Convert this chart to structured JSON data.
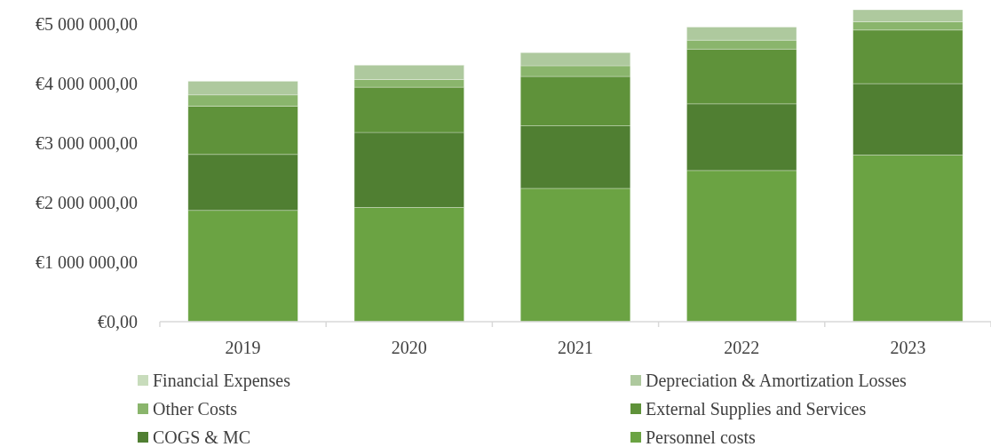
{
  "chart_data": {
    "type": "bar",
    "stacked": true,
    "categories": [
      "2019",
      "2020",
      "2021",
      "2022",
      "2023"
    ],
    "series": [
      {
        "name": "Personnel costs",
        "color": "#6ba343",
        "values": [
          1870000,
          1920000,
          2240000,
          2540000,
          2800000
        ]
      },
      {
        "name": "COGS & MC",
        "color": "#507f32",
        "values": [
          940000,
          1260000,
          1050000,
          1120000,
          1200000
        ]
      },
      {
        "name": "External Supplies and Services",
        "color": "#5f923a",
        "values": [
          810000,
          760000,
          830000,
          920000,
          900000
        ]
      },
      {
        "name": "Other Costs",
        "color": "#8ab56c",
        "values": [
          190000,
          130000,
          180000,
          150000,
          140000
        ]
      },
      {
        "name": "Depreciation & Amortization Losses",
        "color": "#aec99e",
        "values": [
          230000,
          240000,
          220000,
          220000,
          200000
        ]
      },
      {
        "name": "Financial Expenses",
        "color": "#c8dcbc",
        "values": [
          0,
          0,
          0,
          0,
          0
        ]
      }
    ],
    "ylim": [
      0,
      5300000
    ],
    "yticks": [
      {
        "value": 0,
        "label": "€0,00"
      },
      {
        "value": 1000000,
        "label": "€1 000 000,00"
      },
      {
        "value": 2000000,
        "label": "€2 000 000,00"
      },
      {
        "value": 3000000,
        "label": "€3 000 000,00"
      },
      {
        "value": 4000000,
        "label": "€4 000 000,00"
      },
      {
        "value": 5000000,
        "label": "€5 000 000,00"
      }
    ],
    "grid": false,
    "legend": "bottom"
  }
}
